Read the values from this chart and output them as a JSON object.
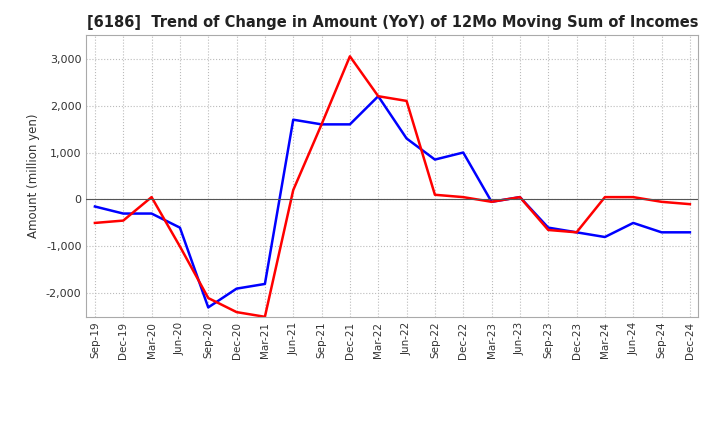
{
  "title": "[6186]  Trend of Change in Amount (YoY) of 12Mo Moving Sum of Incomes",
  "ylabel": "Amount (million yen)",
  "x_labels": [
    "Sep-19",
    "Dec-19",
    "Mar-20",
    "Jun-20",
    "Sep-20",
    "Dec-20",
    "Mar-21",
    "Jun-21",
    "Sep-21",
    "Dec-21",
    "Mar-22",
    "Jun-22",
    "Sep-22",
    "Dec-22",
    "Mar-23",
    "Jun-23",
    "Sep-23",
    "Dec-23",
    "Mar-24",
    "Jun-24",
    "Sep-24",
    "Dec-24"
  ],
  "ordinary_income": [
    -150,
    -300,
    -300,
    -600,
    -2300,
    -1900,
    -1800,
    1700,
    1600,
    1600,
    2200,
    1300,
    850,
    1000,
    -50,
    50,
    -600,
    -700,
    -800,
    -500,
    -700,
    -700
  ],
  "net_income": [
    -500,
    -450,
    50,
    -1000,
    -2100,
    -2400,
    -2500,
    200,
    1600,
    3050,
    2200,
    2100,
    100,
    50,
    -50,
    50,
    -650,
    -700,
    50,
    50,
    -50,
    -100
  ],
  "ordinary_color": "#0000ff",
  "net_color": "#ff0000",
  "background_color": "#ffffff",
  "grid_color": "#bbbbbb",
  "ylim": [
    -2500,
    3500
  ],
  "yticks": [
    -2000,
    -1000,
    0,
    1000,
    2000,
    3000
  ]
}
